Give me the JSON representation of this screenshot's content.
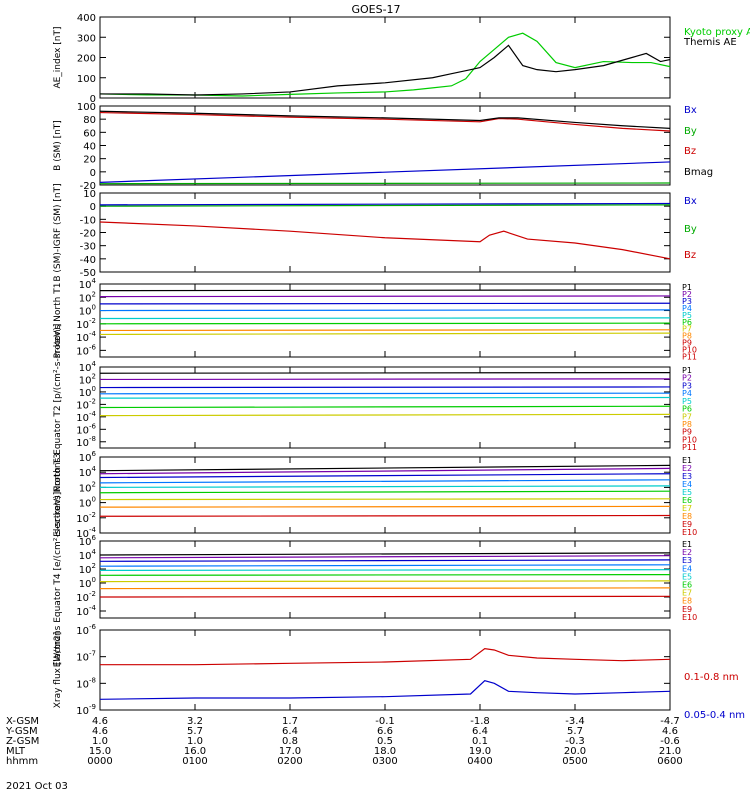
{
  "title": "GOES-17",
  "date_label": "2021 Oct 03",
  "chart_data": [
    {
      "type": "line",
      "ylabel": "AE_index [nT]",
      "ylim": [
        0,
        400
      ],
      "yscale": "linear",
      "yticks": [
        "0",
        "100",
        "200",
        "300",
        "400"
      ],
      "legend": [
        "Kyoto proxy AE",
        "Themis AE"
      ],
      "series": [
        {
          "name": "Kyoto proxy AE",
          "color": "#00cc00",
          "x": [
            0,
            0.5,
            1,
            1.5,
            2,
            2.5,
            3,
            3.3,
            3.5,
            3.7,
            3.85,
            4,
            4.15,
            4.3,
            4.45,
            4.6,
            4.8,
            5,
            5.3,
            5.6,
            5.8,
            6
          ],
          "y": [
            20,
            15,
            15,
            10,
            18,
            25,
            30,
            40,
            50,
            60,
            95,
            180,
            240,
            300,
            320,
            280,
            175,
            150,
            180,
            175,
            175,
            155
          ]
        },
        {
          "name": "Themis AE",
          "color": "#000000",
          "x": [
            0,
            0.5,
            1,
            1.5,
            2,
            2.5,
            3,
            3.5,
            3.7,
            3.9,
            4,
            4.15,
            4.3,
            4.45,
            4.6,
            4.8,
            5,
            5.3,
            5.6,
            5.75,
            5.9,
            6
          ],
          "y": [
            20,
            20,
            15,
            20,
            30,
            60,
            75,
            100,
            120,
            140,
            150,
            200,
            260,
            160,
            140,
            130,
            140,
            160,
            200,
            220,
            180,
            190
          ]
        }
      ]
    },
    {
      "type": "line",
      "ylabel": "B (SM) [nT]",
      "ylim": [
        -20,
        100
      ],
      "yscale": "linear",
      "yticks": [
        "-20",
        "0",
        "20",
        "40",
        "60",
        "80",
        "100"
      ],
      "legend": [
        "Bx",
        "By",
        "Bz",
        "Bmag"
      ],
      "series": [
        {
          "name": "Bx",
          "color": "#0000cc",
          "x": [
            0,
            6
          ],
          "y": [
            -16,
            15
          ]
        },
        {
          "name": "By",
          "color": "#00aa00",
          "x": [
            0,
            6
          ],
          "y": [
            -18,
            -17
          ]
        },
        {
          "name": "Bz",
          "color": "#cc0000",
          "x": [
            0,
            1,
            2,
            3,
            4,
            4.2,
            4.4,
            5,
            5.5,
            6
          ],
          "y": [
            90,
            87,
            83,
            80,
            76,
            81,
            80,
            72,
            66,
            62
          ]
        },
        {
          "name": "Bmag",
          "color": "#000000",
          "x": [
            0,
            1,
            2,
            3,
            4,
            4.2,
            4.4,
            5,
            5.5,
            6
          ],
          "y": [
            92,
            89,
            85,
            82,
            78,
            82,
            82,
            75,
            70,
            66
          ]
        }
      ]
    },
    {
      "type": "line",
      "ylabel": "B (SM)-IGRF (SM) [nT]",
      "ylim": [
        -50,
        10
      ],
      "yscale": "linear",
      "yticks": [
        "-50",
        "-40",
        "-30",
        "-20",
        "-10",
        "0",
        "10"
      ],
      "legend": [
        "Bx",
        "By",
        "Bz"
      ],
      "series": [
        {
          "name": "Bx",
          "color": "#0000cc",
          "x": [
            0,
            6
          ],
          "y": [
            1,
            2
          ]
        },
        {
          "name": "By",
          "color": "#00aa00",
          "x": [
            0,
            6
          ],
          "y": [
            0,
            1
          ]
        },
        {
          "name": "Bz",
          "color": "#cc0000",
          "x": [
            0,
            1,
            2,
            3,
            4,
            4.1,
            4.25,
            4.5,
            5,
            5.5,
            6
          ],
          "y": [
            -12,
            -15,
            -19,
            -24,
            -27,
            -22,
            -19,
            -25,
            -28,
            -33,
            -40
          ]
        }
      ]
    },
    {
      "type": "line",
      "ylabel": "Protons North T1",
      "ylim": [
        -7,
        4
      ],
      "yscale": "log",
      "yticks": [
        "10^-6",
        "10^-4",
        "10^-2",
        "10^0",
        "10^2",
        "10^4"
      ],
      "legend": [
        "P1",
        "P2",
        "P3",
        "P4",
        "P5",
        "P6",
        "P7",
        "P8",
        "P9",
        "P10",
        "P11"
      ],
      "series": [
        {
          "name": "P1",
          "color": "#000000",
          "x": [
            0,
            6
          ],
          "y": [
            3.0,
            3.1
          ]
        },
        {
          "name": "P2",
          "color": "#7700aa",
          "x": [
            0,
            6
          ],
          "y": [
            2.1,
            2.2
          ]
        },
        {
          "name": "P3",
          "color": "#0000cc",
          "x": [
            0,
            6
          ],
          "y": [
            1.0,
            1.1
          ]
        },
        {
          "name": "P4",
          "color": "#0077ff",
          "x": [
            0,
            6
          ],
          "y": [
            0.0,
            0.1
          ]
        },
        {
          "name": "P5",
          "color": "#00cccc",
          "x": [
            0,
            6
          ],
          "y": [
            -1.2,
            -1.1
          ]
        },
        {
          "name": "P6",
          "color": "#00cc00",
          "x": [
            0,
            6
          ],
          "y": [
            -2.0,
            -1.9
          ]
        },
        {
          "name": "P7",
          "color": "#cccc00",
          "x": [
            0,
            6
          ],
          "y": [
            -3.6,
            -3.4
          ]
        },
        {
          "name": "P8",
          "color": "#ff8800",
          "x": [
            0,
            6
          ],
          "y": [
            -3.0,
            -2.9
          ]
        }
      ]
    },
    {
      "type": "line",
      "ylabel": "Protons Equator T2 [p/(cm²-s-sr-keV)]",
      "ylim": [
        -9,
        4
      ],
      "yscale": "log",
      "yticks": [
        "10^-8",
        "10^-6",
        "10^-4",
        "10^-2",
        "10^0",
        "10^2",
        "10^4"
      ],
      "legend": [
        "P1",
        "P2",
        "P3",
        "P4",
        "P5",
        "P6",
        "P7",
        "P8",
        "P9",
        "P10",
        "P11"
      ],
      "series": [
        {
          "name": "P1",
          "color": "#000000",
          "x": [
            0,
            6
          ],
          "y": [
            3.0,
            3.1
          ]
        },
        {
          "name": "P2",
          "color": "#7700aa",
          "x": [
            0,
            6
          ],
          "y": [
            2.0,
            2.1
          ]
        },
        {
          "name": "P3",
          "color": "#0000cc",
          "x": [
            0,
            6
          ],
          "y": [
            0.7,
            0.8
          ]
        },
        {
          "name": "P4",
          "color": "#0077ff",
          "x": [
            0,
            6
          ],
          "y": [
            -0.3,
            -0.2
          ]
        },
        {
          "name": "P5",
          "color": "#00cccc",
          "x": [
            0,
            6
          ],
          "y": [
            -1.0,
            -0.9
          ]
        },
        {
          "name": "P6",
          "color": "#00cc00",
          "x": [
            0,
            6
          ],
          "y": [
            -2.5,
            -2.3
          ]
        },
        {
          "name": "P7",
          "color": "#cccc00",
          "x": [
            0,
            6
          ],
          "y": [
            -3.8,
            -3.6
          ]
        }
      ]
    },
    {
      "type": "line",
      "ylabel": "Electrons North T3",
      "ylim": [
        -4,
        6
      ],
      "yscale": "log",
      "yticks": [
        "10^-4",
        "10^-2",
        "10^0",
        "10^2",
        "10^4",
        "10^6"
      ],
      "legend": [
        "E1",
        "E2",
        "E3",
        "E4",
        "E5",
        "E6",
        "E7",
        "E8",
        "E9",
        "E10"
      ],
      "series": [
        {
          "name": "E1",
          "color": "#000000",
          "x": [
            0,
            6
          ],
          "y": [
            4.2,
            4.9
          ]
        },
        {
          "name": "E2",
          "color": "#7700aa",
          "x": [
            0,
            6
          ],
          "y": [
            3.8,
            4.5
          ]
        },
        {
          "name": "E3",
          "color": "#0000cc",
          "x": [
            0,
            6
          ],
          "y": [
            3.3,
            3.8
          ]
        },
        {
          "name": "E4",
          "color": "#0077ff",
          "x": [
            0,
            6
          ],
          "y": [
            2.6,
            3.0
          ]
        },
        {
          "name": "E5",
          "color": "#00cccc",
          "x": [
            0,
            6
          ],
          "y": [
            2.0,
            2.2
          ]
        },
        {
          "name": "E6",
          "color": "#00cc00",
          "x": [
            0,
            6
          ],
          "y": [
            1.3,
            1.5
          ]
        },
        {
          "name": "E7",
          "color": "#cccc00",
          "x": [
            0,
            6
          ],
          "y": [
            0.4,
            0.5
          ]
        },
        {
          "name": "E8",
          "color": "#ff8800",
          "x": [
            0,
            6
          ],
          "y": [
            -0.6,
            -0.5
          ]
        },
        {
          "name": "E9",
          "color": "#cc0000",
          "x": [
            0,
            6
          ],
          "y": [
            -1.8,
            -1.7
          ]
        }
      ]
    },
    {
      "type": "line",
      "ylabel": "Electrons Equator T4 [e/(cm²-s-sr-keV)]",
      "ylim": [
        -5,
        6
      ],
      "yscale": "log",
      "yticks": [
        "10^-4",
        "10^-2",
        "10^0",
        "10^2",
        "10^4",
        "10^6"
      ],
      "legend": [
        "E1",
        "E2",
        "E3",
        "E4",
        "E5",
        "E6",
        "E7",
        "E8",
        "E9",
        "E10"
      ],
      "series": [
        {
          "name": "E1",
          "color": "#000000",
          "x": [
            0,
            6
          ],
          "y": [
            4.0,
            4.3
          ]
        },
        {
          "name": "E2",
          "color": "#7700aa",
          "x": [
            0,
            6
          ],
          "y": [
            3.6,
            3.9
          ]
        },
        {
          "name": "E3",
          "color": "#0000cc",
          "x": [
            0,
            6
          ],
          "y": [
            3.1,
            3.3
          ]
        },
        {
          "name": "E4",
          "color": "#0077ff",
          "x": [
            0,
            6
          ],
          "y": [
            2.4,
            2.6
          ]
        },
        {
          "name": "E5",
          "color": "#00cccc",
          "x": [
            0,
            6
          ],
          "y": [
            1.8,
            1.9
          ]
        },
        {
          "name": "E6",
          "color": "#00cc00",
          "x": [
            0,
            6
          ],
          "y": [
            1.1,
            1.2
          ]
        },
        {
          "name": "E7",
          "color": "#cccc00",
          "x": [
            0,
            6
          ],
          "y": [
            0.2,
            0.3
          ]
        },
        {
          "name": "E8",
          "color": "#ff8800",
          "x": [
            0,
            6
          ],
          "y": [
            -0.8,
            -0.7
          ]
        },
        {
          "name": "E9",
          "color": "#cc0000",
          "x": [
            0,
            6
          ],
          "y": [
            -2.0,
            -1.9
          ]
        }
      ]
    },
    {
      "type": "line",
      "ylabel": "Xray flux [W/m2]",
      "ylim": [
        -9,
        -6
      ],
      "yscale": "log",
      "yticks": [
        "10^-9",
        "10^-8",
        "10^-7",
        "10^-6"
      ],
      "legend": [
        "0.1-0.8 nm",
        "0.05-0.4 nm"
      ],
      "series": [
        {
          "name": "0.1-0.8 nm",
          "color": "#cc0000",
          "x": [
            0,
            1,
            2,
            3,
            3.9,
            4.05,
            4.15,
            4.3,
            4.6,
            5,
            5.5,
            6
          ],
          "y": [
            -7.3,
            -7.3,
            -7.25,
            -7.2,
            -7.1,
            -6.7,
            -6.75,
            -6.95,
            -7.05,
            -7.1,
            -7.15,
            -7.1
          ]
        },
        {
          "name": "0.05-0.4 nm",
          "color": "#0000cc",
          "x": [
            0,
            1,
            2,
            3,
            3.9,
            4.05,
            4.15,
            4.3,
            4.6,
            5,
            5.5,
            6
          ],
          "y": [
            -8.6,
            -8.55,
            -8.55,
            -8.5,
            -8.4,
            -7.9,
            -8.0,
            -8.3,
            -8.35,
            -8.4,
            -8.35,
            -8.3
          ]
        }
      ]
    }
  ],
  "x_axis": {
    "xlim": [
      0,
      6
    ],
    "ephemeris": [
      {
        "label": "X-GSM",
        "values": [
          "4.6",
          "3.2",
          "1.7",
          "-0.1",
          "-1.8",
          "-3.4",
          "-4.7"
        ]
      },
      {
        "label": "Y-GSM",
        "values": [
          "4.6",
          "5.7",
          "6.4",
          "6.6",
          "6.4",
          "5.7",
          "4.6"
        ]
      },
      {
        "label": "Z-GSM",
        "values": [
          "1.0",
          "1.0",
          "0.8",
          "0.5",
          "0.1",
          "-0.3",
          "-0.6"
        ]
      },
      {
        "label": "MLT",
        "values": [
          "15.0",
          "16.0",
          "17.0",
          "18.0",
          "19.0",
          "20.0",
          "21.0"
        ]
      },
      {
        "label": "hhmm",
        "values": [
          "0000",
          "0100",
          "0200",
          "0300",
          "0400",
          "0500",
          "0600"
        ]
      }
    ]
  }
}
